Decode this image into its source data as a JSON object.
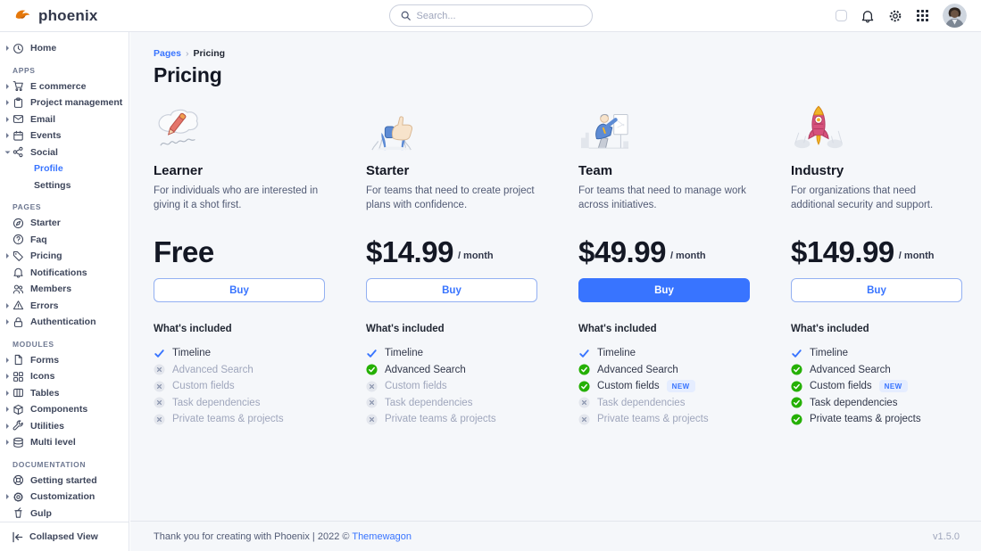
{
  "navbar": {
    "brand": "phoenix",
    "search_placeholder": "Search...",
    "icons": [
      "theme-toggle",
      "bell-icon",
      "gear-icon",
      "apps-grid-icon",
      "avatar"
    ]
  },
  "breadcrumb": {
    "items": [
      "Pages",
      "Pricing"
    ],
    "separator": "›"
  },
  "page": {
    "title": "Pricing"
  },
  "sidebar": {
    "sections": [
      {
        "heading": "",
        "items": [
          {
            "label": "Home",
            "icon": "clock-icon",
            "caret": true
          }
        ]
      },
      {
        "heading": "APPS",
        "items": [
          {
            "label": "E commerce",
            "icon": "cart-icon",
            "caret": true
          },
          {
            "label": "Project management",
            "icon": "clipboard-icon",
            "caret": true
          },
          {
            "label": "Email",
            "icon": "mail-icon",
            "caret": true
          },
          {
            "label": "Events",
            "icon": "calendar-icon",
            "caret": true
          },
          {
            "label": "Social",
            "icon": "share-icon",
            "caret": true,
            "expanded": true,
            "children": [
              {
                "label": "Profile",
                "active": true
              },
              {
                "label": "Settings"
              }
            ]
          }
        ]
      },
      {
        "heading": "PAGES",
        "items": [
          {
            "label": "Starter",
            "icon": "compass-icon"
          },
          {
            "label": "Faq",
            "icon": "help-icon"
          },
          {
            "label": "Pricing",
            "icon": "tag-icon",
            "caret": true
          },
          {
            "label": "Notifications",
            "icon": "bell-icon"
          },
          {
            "label": "Members",
            "icon": "users-icon"
          },
          {
            "label": "Errors",
            "icon": "warning-icon",
            "caret": true
          },
          {
            "label": "Authentication",
            "icon": "lock-icon",
            "caret": true
          }
        ]
      },
      {
        "heading": "MODULES",
        "items": [
          {
            "label": "Forms",
            "icon": "file-icon",
            "caret": true
          },
          {
            "label": "Icons",
            "icon": "grid-icon",
            "caret": true
          },
          {
            "label": "Tables",
            "icon": "table-icon",
            "caret": true
          },
          {
            "label": "Components",
            "icon": "package-icon",
            "caret": true
          },
          {
            "label": "Utilities",
            "icon": "wrench-icon",
            "caret": true
          },
          {
            "label": "Multi level",
            "icon": "layers-icon",
            "caret": true
          }
        ]
      },
      {
        "heading": "DOCUMENTATION",
        "items": [
          {
            "label": "Getting started",
            "icon": "lifering-icon"
          },
          {
            "label": "Customization",
            "icon": "gear-icon",
            "caret": true
          },
          {
            "label": "Gulp",
            "icon": "gulp-icon"
          }
        ]
      }
    ],
    "collapse_label": "Collapsed View"
  },
  "pricing": {
    "whats_included": "What's included",
    "new_badge": "NEW",
    "plans": [
      {
        "name": "Learner",
        "illustration": "pencil-illustration",
        "description": "For individuals who are interested in giving it a shot first.",
        "price": "Free",
        "period": "",
        "button": {
          "label": "Buy",
          "variant": "outline"
        },
        "features": [
          {
            "label": "Timeline",
            "state": "basic",
            "icon": "check-icon"
          },
          {
            "label": "Advanced Search",
            "state": "excluded",
            "icon": "x-circle-icon"
          },
          {
            "label": "Custom fields",
            "state": "excluded",
            "icon": "x-circle-icon"
          },
          {
            "label": "Task dependencies",
            "state": "excluded",
            "icon": "x-circle-icon"
          },
          {
            "label": "Private teams & projects",
            "state": "excluded",
            "icon": "x-circle-icon"
          }
        ]
      },
      {
        "name": "Starter",
        "illustration": "thumbs-illustration",
        "description": "For teams that need to create project plans with confidence.",
        "price": "$14.99",
        "period": "/ month",
        "button": {
          "label": "Buy",
          "variant": "outline"
        },
        "features": [
          {
            "label": "Timeline",
            "state": "basic",
            "icon": "check-icon"
          },
          {
            "label": "Advanced Search",
            "state": "included",
            "icon": "check-circle-icon"
          },
          {
            "label": "Custom fields",
            "state": "excluded",
            "icon": "x-circle-icon"
          },
          {
            "label": "Task dependencies",
            "state": "excluded",
            "icon": "x-circle-icon"
          },
          {
            "label": "Private teams & projects",
            "state": "excluded",
            "icon": "x-circle-icon"
          }
        ]
      },
      {
        "name": "Team",
        "illustration": "team-illustration",
        "description": "For teams that need to manage work across initiatives.",
        "price": "$49.99",
        "period": "/ month",
        "button": {
          "label": "Buy",
          "variant": "primary"
        },
        "features": [
          {
            "label": "Timeline",
            "state": "basic",
            "icon": "check-icon"
          },
          {
            "label": "Advanced Search",
            "state": "included",
            "icon": "check-circle-icon"
          },
          {
            "label": "Custom fields",
            "state": "included",
            "icon": "check-circle-icon",
            "badge": "NEW"
          },
          {
            "label": "Task dependencies",
            "state": "excluded",
            "icon": "x-circle-icon"
          },
          {
            "label": "Private teams & projects",
            "state": "excluded",
            "icon": "x-circle-icon"
          }
        ]
      },
      {
        "name": "Industry",
        "illustration": "rocket-illustration",
        "description": "For organizations that need additional security and support.",
        "price": "$149.99",
        "period": "/ month",
        "button": {
          "label": "Buy",
          "variant": "outline"
        },
        "features": [
          {
            "label": "Timeline",
            "state": "basic",
            "icon": "check-icon"
          },
          {
            "label": "Advanced Search",
            "state": "included",
            "icon": "check-circle-icon"
          },
          {
            "label": "Custom fields",
            "state": "included",
            "icon": "check-circle-icon",
            "badge": "NEW"
          },
          {
            "label": "Task dependencies",
            "state": "included",
            "icon": "check-circle-icon"
          },
          {
            "label": "Private teams & projects",
            "state": "included",
            "icon": "check-circle-icon"
          }
        ]
      }
    ]
  },
  "footer": {
    "text": "Thank you for creating with Phoenix | 2022 © ",
    "link": "Themewagon",
    "version": "v1.5.0"
  },
  "colors": {
    "primary": "#3874FF",
    "success": "#25B003",
    "page_bg": "#F5F7FA",
    "border": "#E3E6ED",
    "text_dark": "#141824",
    "text_muted": "#9FA6BC",
    "logo_orange": "#E5780B"
  }
}
